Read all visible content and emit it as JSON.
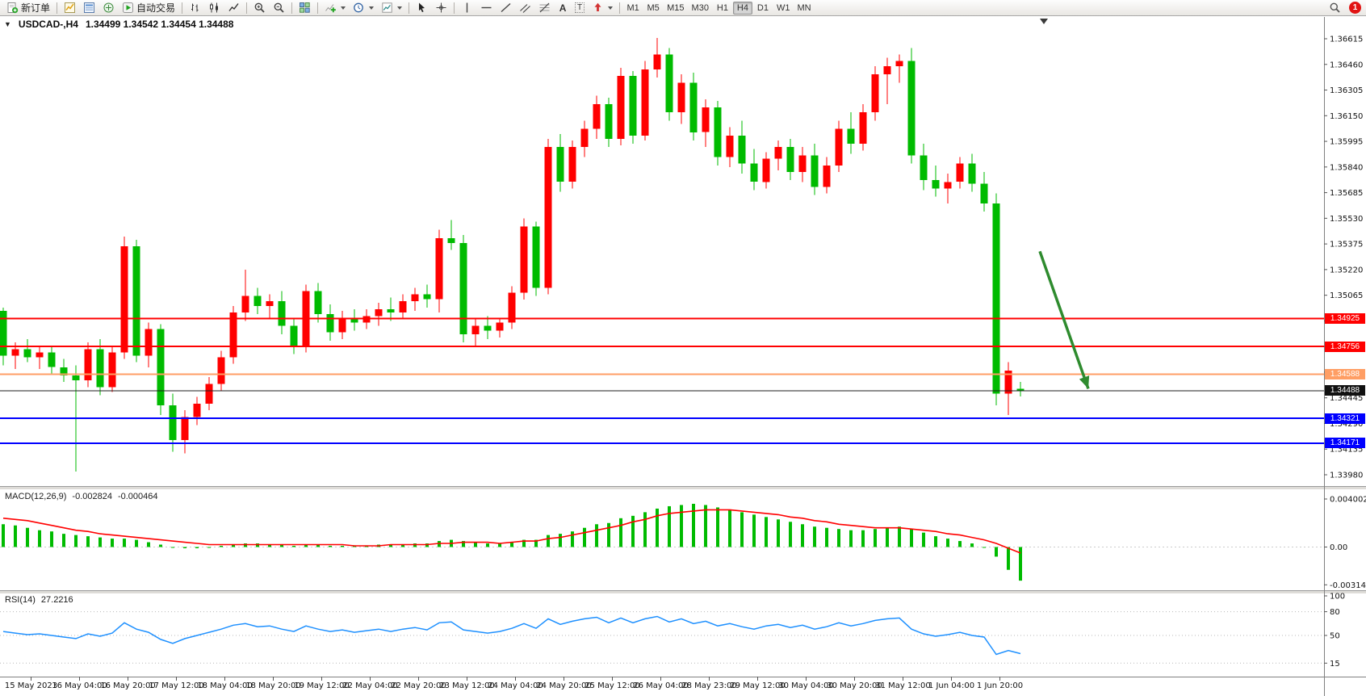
{
  "toolbar": {
    "new_order": "新订单",
    "autotrading": "自动交易",
    "timeframes": [
      "M1",
      "M5",
      "M15",
      "M30",
      "H1",
      "H4",
      "D1",
      "W1",
      "MN"
    ],
    "active_timeframe": "H4",
    "notification_count": "1"
  },
  "chart_header": {
    "symbol_period": "USDCAD-,H4",
    "ohlc_text": "1.34499 1.34542 1.34454 1.34488"
  },
  "price_axis": {
    "labels": [
      "1.36615",
      "1.36460",
      "1.36305",
      "1.36150",
      "1.35995",
      "1.35840",
      "1.35685",
      "1.35530",
      "1.35375",
      "1.35220",
      "1.35065",
      "1.34910",
      "1.34755",
      "1.34600",
      "1.34445",
      "1.34290",
      "1.34135",
      "1.33980"
    ]
  },
  "macd_panel": {
    "label": "MACD(12,26,9)",
    "main_value": "-0.002824",
    "signal_value": "-0.000464",
    "axis": [
      "0.004002",
      "0.00",
      "-0.003148"
    ]
  },
  "rsi_panel": {
    "label": "RSI(14)",
    "value": "27.2216",
    "axis": [
      "100",
      "80",
      "50",
      "15"
    ]
  },
  "time_axis": [
    "15 May 2023",
    "16 May 04:00",
    "16 May 20:00",
    "17 May 12:00",
    "18 May 04:00",
    "18 May 20:00",
    "19 May 12:00",
    "22 May 04:00",
    "22 May 20:00",
    "23 May 12:00",
    "24 May 04:00",
    "24 May 20:00",
    "25 May 12:00",
    "26 May 04:00",
    "28 May 23:00",
    "29 May 12:00",
    "30 May 04:00",
    "30 May 20:00",
    "31 May 12:00",
    "1 Jun 04:00",
    "1 Jun 20:00"
  ],
  "chart_data": {
    "type": "candlestick",
    "symbol": "USDCAD",
    "timeframe": "H4",
    "bull_color": "#FF0000",
    "bear_color": "#00BB00",
    "price_range": [
      1.3398,
      1.36615
    ],
    "candles": [
      [
        1.3497,
        1.3499,
        1.3464,
        1.347
      ],
      [
        1.347,
        1.3478,
        1.3462,
        1.3474
      ],
      [
        1.3474,
        1.348,
        1.3466,
        1.3469
      ],
      [
        1.3469,
        1.3476,
        1.3462,
        1.3472
      ],
      [
        1.3472,
        1.3475,
        1.3459,
        1.3463
      ],
      [
        1.3463,
        1.3468,
        1.3454,
        1.3458
      ],
      [
        1.3458,
        1.3464,
        1.34,
        1.3455
      ],
      [
        1.3455,
        1.3478,
        1.3451,
        1.3474
      ],
      [
        1.3474,
        1.348,
        1.3446,
        1.3451
      ],
      [
        1.3451,
        1.3476,
        1.3448,
        1.3472
      ],
      [
        1.3472,
        1.3542,
        1.3468,
        1.3536
      ],
      [
        1.3536,
        1.354,
        1.3466,
        1.347
      ],
      [
        1.347,
        1.349,
        1.3463,
        1.3486
      ],
      [
        1.3486,
        1.3489,
        1.3434,
        1.344
      ],
      [
        1.344,
        1.3447,
        1.3412,
        1.3419
      ],
      [
        1.3419,
        1.3437,
        1.3411,
        1.3433
      ],
      [
        1.3433,
        1.3445,
        1.3428,
        1.3441
      ],
      [
        1.3441,
        1.3457,
        1.3437,
        1.3453
      ],
      [
        1.3453,
        1.3473,
        1.3449,
        1.3469
      ],
      [
        1.3469,
        1.35,
        1.3465,
        1.3496
      ],
      [
        1.3496,
        1.3522,
        1.3491,
        1.3506
      ],
      [
        1.3506,
        1.3511,
        1.3495,
        1.35
      ],
      [
        1.35,
        1.3507,
        1.3493,
        1.3503
      ],
      [
        1.3503,
        1.3509,
        1.3483,
        1.3488
      ],
      [
        1.3488,
        1.3493,
        1.3471,
        1.3476
      ],
      [
        1.3476,
        1.3513,
        1.3472,
        1.3509
      ],
      [
        1.3509,
        1.3514,
        1.349,
        1.3495
      ],
      [
        1.3495,
        1.3501,
        1.3479,
        1.3484
      ],
      [
        1.3484,
        1.3497,
        1.348,
        1.3493
      ],
      [
        1.3493,
        1.3498,
        1.3485,
        1.349
      ],
      [
        1.349,
        1.3498,
        1.3486,
        1.3494
      ],
      [
        1.3494,
        1.3502,
        1.3488,
        1.3498
      ],
      [
        1.3498,
        1.3505,
        1.3491,
        1.3496
      ],
      [
        1.3496,
        1.3507,
        1.3492,
        1.3503
      ],
      [
        1.3503,
        1.3511,
        1.3497,
        1.3507
      ],
      [
        1.3507,
        1.3513,
        1.3499,
        1.3504
      ],
      [
        1.3504,
        1.3546,
        1.3496,
        1.3541
      ],
      [
        1.3541,
        1.3552,
        1.3534,
        1.3538
      ],
      [
        1.3538,
        1.3543,
        1.3478,
        1.3483
      ],
      [
        1.3483,
        1.3492,
        1.3476,
        1.3488
      ],
      [
        1.3488,
        1.3494,
        1.348,
        1.3485
      ],
      [
        1.3485,
        1.3493,
        1.3481,
        1.349
      ],
      [
        1.349,
        1.3512,
        1.3486,
        1.3508
      ],
      [
        1.3508,
        1.3553,
        1.3504,
        1.3548
      ],
      [
        1.3548,
        1.3551,
        1.3506,
        1.3511
      ],
      [
        1.3511,
        1.3601,
        1.3507,
        1.3596
      ],
      [
        1.3596,
        1.3604,
        1.3569,
        1.3575
      ],
      [
        1.3575,
        1.36,
        1.3571,
        1.3596
      ],
      [
        1.3596,
        1.3612,
        1.359,
        1.3607
      ],
      [
        1.3607,
        1.3627,
        1.3601,
        1.3622
      ],
      [
        1.3622,
        1.3626,
        1.3596,
        1.3601
      ],
      [
        1.3601,
        1.3644,
        1.3597,
        1.3639
      ],
      [
        1.3639,
        1.3642,
        1.3598,
        1.3603
      ],
      [
        1.3603,
        1.3648,
        1.36,
        1.3643
      ],
      [
        1.3643,
        1.3662,
        1.3638,
        1.3652
      ],
      [
        1.3652,
        1.3656,
        1.3612,
        1.3617
      ],
      [
        1.3617,
        1.364,
        1.361,
        1.3635
      ],
      [
        1.3635,
        1.3641,
        1.36,
        1.3605
      ],
      [
        1.3605,
        1.3625,
        1.3596,
        1.362
      ],
      [
        1.362,
        1.3624,
        1.3585,
        1.359
      ],
      [
        1.359,
        1.3608,
        1.3584,
        1.3603
      ],
      [
        1.3603,
        1.3612,
        1.358,
        1.3586
      ],
      [
        1.3586,
        1.3595,
        1.357,
        1.3575
      ],
      [
        1.3575,
        1.3593,
        1.3571,
        1.3589
      ],
      [
        1.3589,
        1.36,
        1.3582,
        1.3596
      ],
      [
        1.3596,
        1.3601,
        1.3576,
        1.3581
      ],
      [
        1.3581,
        1.3596,
        1.3575,
        1.3591
      ],
      [
        1.3591,
        1.3598,
        1.3567,
        1.3572
      ],
      [
        1.3572,
        1.359,
        1.3568,
        1.3585
      ],
      [
        1.3585,
        1.3612,
        1.3581,
        1.3607
      ],
      [
        1.3607,
        1.3617,
        1.3592,
        1.3598
      ],
      [
        1.3598,
        1.3622,
        1.3594,
        1.3617
      ],
      [
        1.3617,
        1.3645,
        1.3612,
        1.364
      ],
      [
        1.364,
        1.365,
        1.3622,
        1.3645
      ],
      [
        1.3645,
        1.3652,
        1.3635,
        1.3648
      ],
      [
        1.3648,
        1.3656,
        1.3586,
        1.3591
      ],
      [
        1.3591,
        1.3598,
        1.357,
        1.3576
      ],
      [
        1.3576,
        1.3585,
        1.3566,
        1.3571
      ],
      [
        1.3571,
        1.358,
        1.3562,
        1.3575
      ],
      [
        1.3575,
        1.359,
        1.3571,
        1.3586
      ],
      [
        1.3586,
        1.3592,
        1.3569,
        1.3574
      ],
      [
        1.3574,
        1.3581,
        1.3557,
        1.3562
      ],
      [
        1.3562,
        1.3568,
        1.344,
        1.3447
      ],
      [
        1.3447,
        1.3466,
        1.3434,
        1.3461
      ],
      [
        1.34499,
        1.34542,
        1.34454,
        1.34488
      ]
    ],
    "horizontal_lines": [
      {
        "price": 1.34925,
        "label": "1.34925",
        "color": "#FF0000",
        "width": 2
      },
      {
        "price": 1.34756,
        "label": "1.34756",
        "color": "#FF0000",
        "width": 2
      },
      {
        "price": 1.34588,
        "label": "1.34588",
        "color": "#FF9E64",
        "width": 2
      },
      {
        "price": 1.34488,
        "label": "1.34488",
        "color": "#1d1d1d",
        "width": 1,
        "role": "bid"
      },
      {
        "price": 1.34321,
        "label": "1.34321",
        "color": "#0000FF",
        "width": 2
      },
      {
        "price": 1.34171,
        "label": "1.34171",
        "color": "#0000FF",
        "width": 2
      }
    ],
    "arrow": {
      "from_index": 85.6,
      "from_price": 1.3533,
      "to_index": 89.6,
      "to_price": 1.345,
      "color": "#2E8B2E",
      "width": 3.5
    },
    "macd": {
      "axis_range": [
        -0.003148,
        0.004002
      ],
      "histogram_color": "#00BB00",
      "signal_color": "#FF0000",
      "histogram": [
        0.0019,
        0.0018,
        0.0016,
        0.0014,
        0.0013,
        0.0011,
        0.001,
        0.0009,
        0.0008,
        0.0007,
        0.0007,
        0.0006,
        0.0004,
        0.0002,
        0.0,
        -0.0001,
        -0.0001,
        0.0,
        0.0001,
        0.0002,
        0.0003,
        0.0003,
        0.0002,
        0.0002,
        0.0001,
        0.0002,
        0.0002,
        0.0001,
        0.0001,
        0.0001,
        0.0001,
        0.0002,
        0.0002,
        0.0002,
        0.0003,
        0.0003,
        0.0005,
        0.0006,
        0.0005,
        0.0004,
        0.0003,
        0.0003,
        0.0004,
        0.0006,
        0.0006,
        0.001,
        0.0011,
        0.0013,
        0.0016,
        0.0019,
        0.002,
        0.0024,
        0.0026,
        0.0029,
        0.0032,
        0.0034,
        0.0035,
        0.0036,
        0.0035,
        0.0033,
        0.0031,
        0.0029,
        0.0027,
        0.0025,
        0.0023,
        0.0021,
        0.0019,
        0.0017,
        0.0016,
        0.0015,
        0.0014,
        0.0014,
        0.0015,
        0.0016,
        0.0017,
        0.0015,
        0.0012,
        0.0009,
        0.0007,
        0.0005,
        0.0003,
        0.0,
        -0.0008,
        -0.0019,
        -0.0028
      ],
      "signal": [
        0.0024,
        0.0023,
        0.0022,
        0.002,
        0.0018,
        0.0016,
        0.0014,
        0.0013,
        0.0011,
        0.001,
        0.0009,
        0.0008,
        0.0007,
        0.0006,
        0.0005,
        0.0004,
        0.0003,
        0.0002,
        0.0002,
        0.0002,
        0.0002,
        0.0002,
        0.0002,
        0.0002,
        0.0002,
        0.0002,
        0.0002,
        0.0002,
        0.0002,
        0.0001,
        0.0001,
        0.0001,
        0.0002,
        0.0002,
        0.0002,
        0.0002,
        0.0003,
        0.0003,
        0.0004,
        0.0004,
        0.0004,
        0.0003,
        0.0004,
        0.0005,
        0.0005,
        0.0007,
        0.0008,
        0.001,
        0.0012,
        0.0014,
        0.0016,
        0.0018,
        0.0021,
        0.0023,
        0.0026,
        0.0028,
        0.0029,
        0.003,
        0.0031,
        0.0031,
        0.0031,
        0.003,
        0.0029,
        0.0028,
        0.0027,
        0.0025,
        0.0024,
        0.0022,
        0.0021,
        0.0019,
        0.0018,
        0.0017,
        0.0016,
        0.0016,
        0.0016,
        0.0015,
        0.0014,
        0.0013,
        0.0011,
        0.001,
        0.0008,
        0.0006,
        0.0003,
        -0.0001,
        -0.0005
      ]
    },
    "rsi": {
      "range": [
        0,
        100
      ],
      "levels": [
        80,
        50,
        15
      ],
      "line_color": "#1E90FF",
      "values": [
        55,
        53,
        51,
        52,
        50,
        48,
        46,
        52,
        49,
        53,
        66,
        58,
        54,
        45,
        40,
        46,
        50,
        54,
        58,
        63,
        65,
        61,
        62,
        58,
        55,
        62,
        58,
        55,
        57,
        54,
        56,
        58,
        55,
        58,
        60,
        57,
        66,
        67,
        57,
        55,
        53,
        55,
        59,
        65,
        59,
        71,
        64,
        68,
        71,
        73,
        66,
        72,
        66,
        71,
        74,
        67,
        71,
        65,
        68,
        62,
        65,
        61,
        58,
        62,
        64,
        60,
        63,
        58,
        61,
        66,
        62,
        65,
        69,
        71,
        72,
        58,
        52,
        49,
        51,
        54,
        50,
        48,
        26,
        31,
        27
      ]
    }
  }
}
